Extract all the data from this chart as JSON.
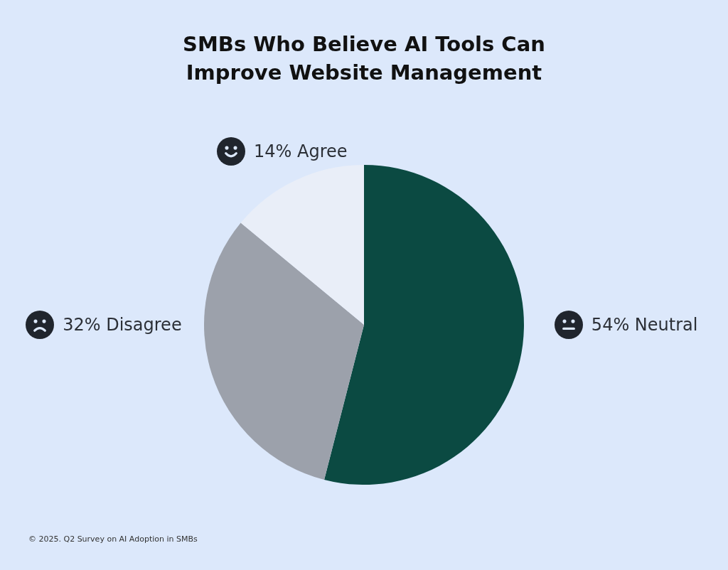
{
  "chart_data": {
    "type": "pie",
    "title": "SMBs Who Believe AI Tools Can Improve Website Management",
    "categories": [
      "Neutral",
      "Disagree",
      "Agree"
    ],
    "values": [
      54,
      32,
      14
    ],
    "value_labels": [
      "54%",
      "32%",
      "14%"
    ],
    "colors": [
      "#0b4a42",
      "#9ca1ab",
      "#e9eef8"
    ],
    "annotations": [
      "© 2025. Q2 Survey on AI Adoption in SMBs"
    ]
  }
}
